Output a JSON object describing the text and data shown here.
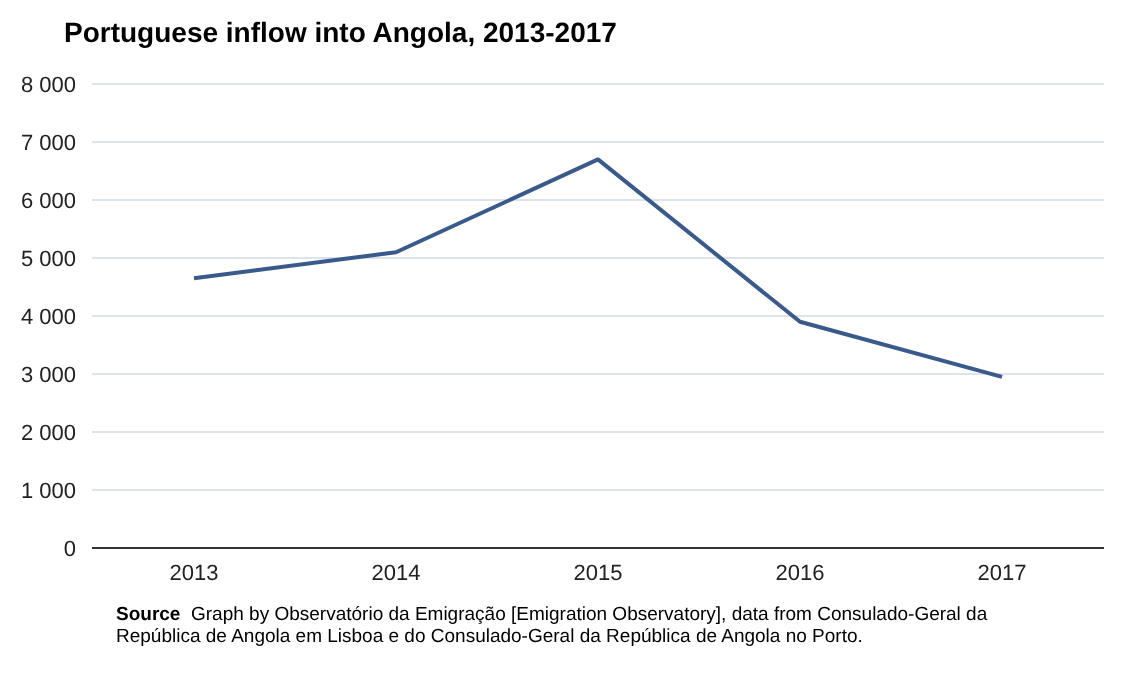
{
  "chart_data": {
    "type": "line",
    "title": "Portuguese  inflow into Angola, 2013-2017",
    "categories": [
      "2013",
      "2014",
      "2015",
      "2016",
      "2017"
    ],
    "series": [
      {
        "color": "#3a5a8c",
        "values": [
          4650,
          5100,
          6700,
          3900,
          2950
        ]
      }
    ],
    "ylim": [
      0,
      8000
    ],
    "yticks": [
      0,
      {
        "value": 1000,
        "label": "1 000"
      },
      {
        "value": 2000,
        "label": "2 000"
      },
      {
        "value": 3000,
        "label": "3 000"
      },
      {
        "value": 4000,
        "label": "4 000"
      },
      {
        "value": 5000,
        "label": "5 000"
      },
      {
        "value": 6000,
        "label": "6 000"
      },
      {
        "value": 7000,
        "label": "7 000"
      },
      {
        "value": 8000,
        "label": "8 000"
      }
    ],
    "grid": "y",
    "legend": false,
    "marker": "none",
    "line_style": "solid",
    "annotations": [
      "Source",
      "Graph by Observatório da Emigração [Emigration Observatory], data from Consulado-Geral da República de Angola em Lisboa e do Consulado-Geral da República de Angola no Porto."
    ]
  }
}
